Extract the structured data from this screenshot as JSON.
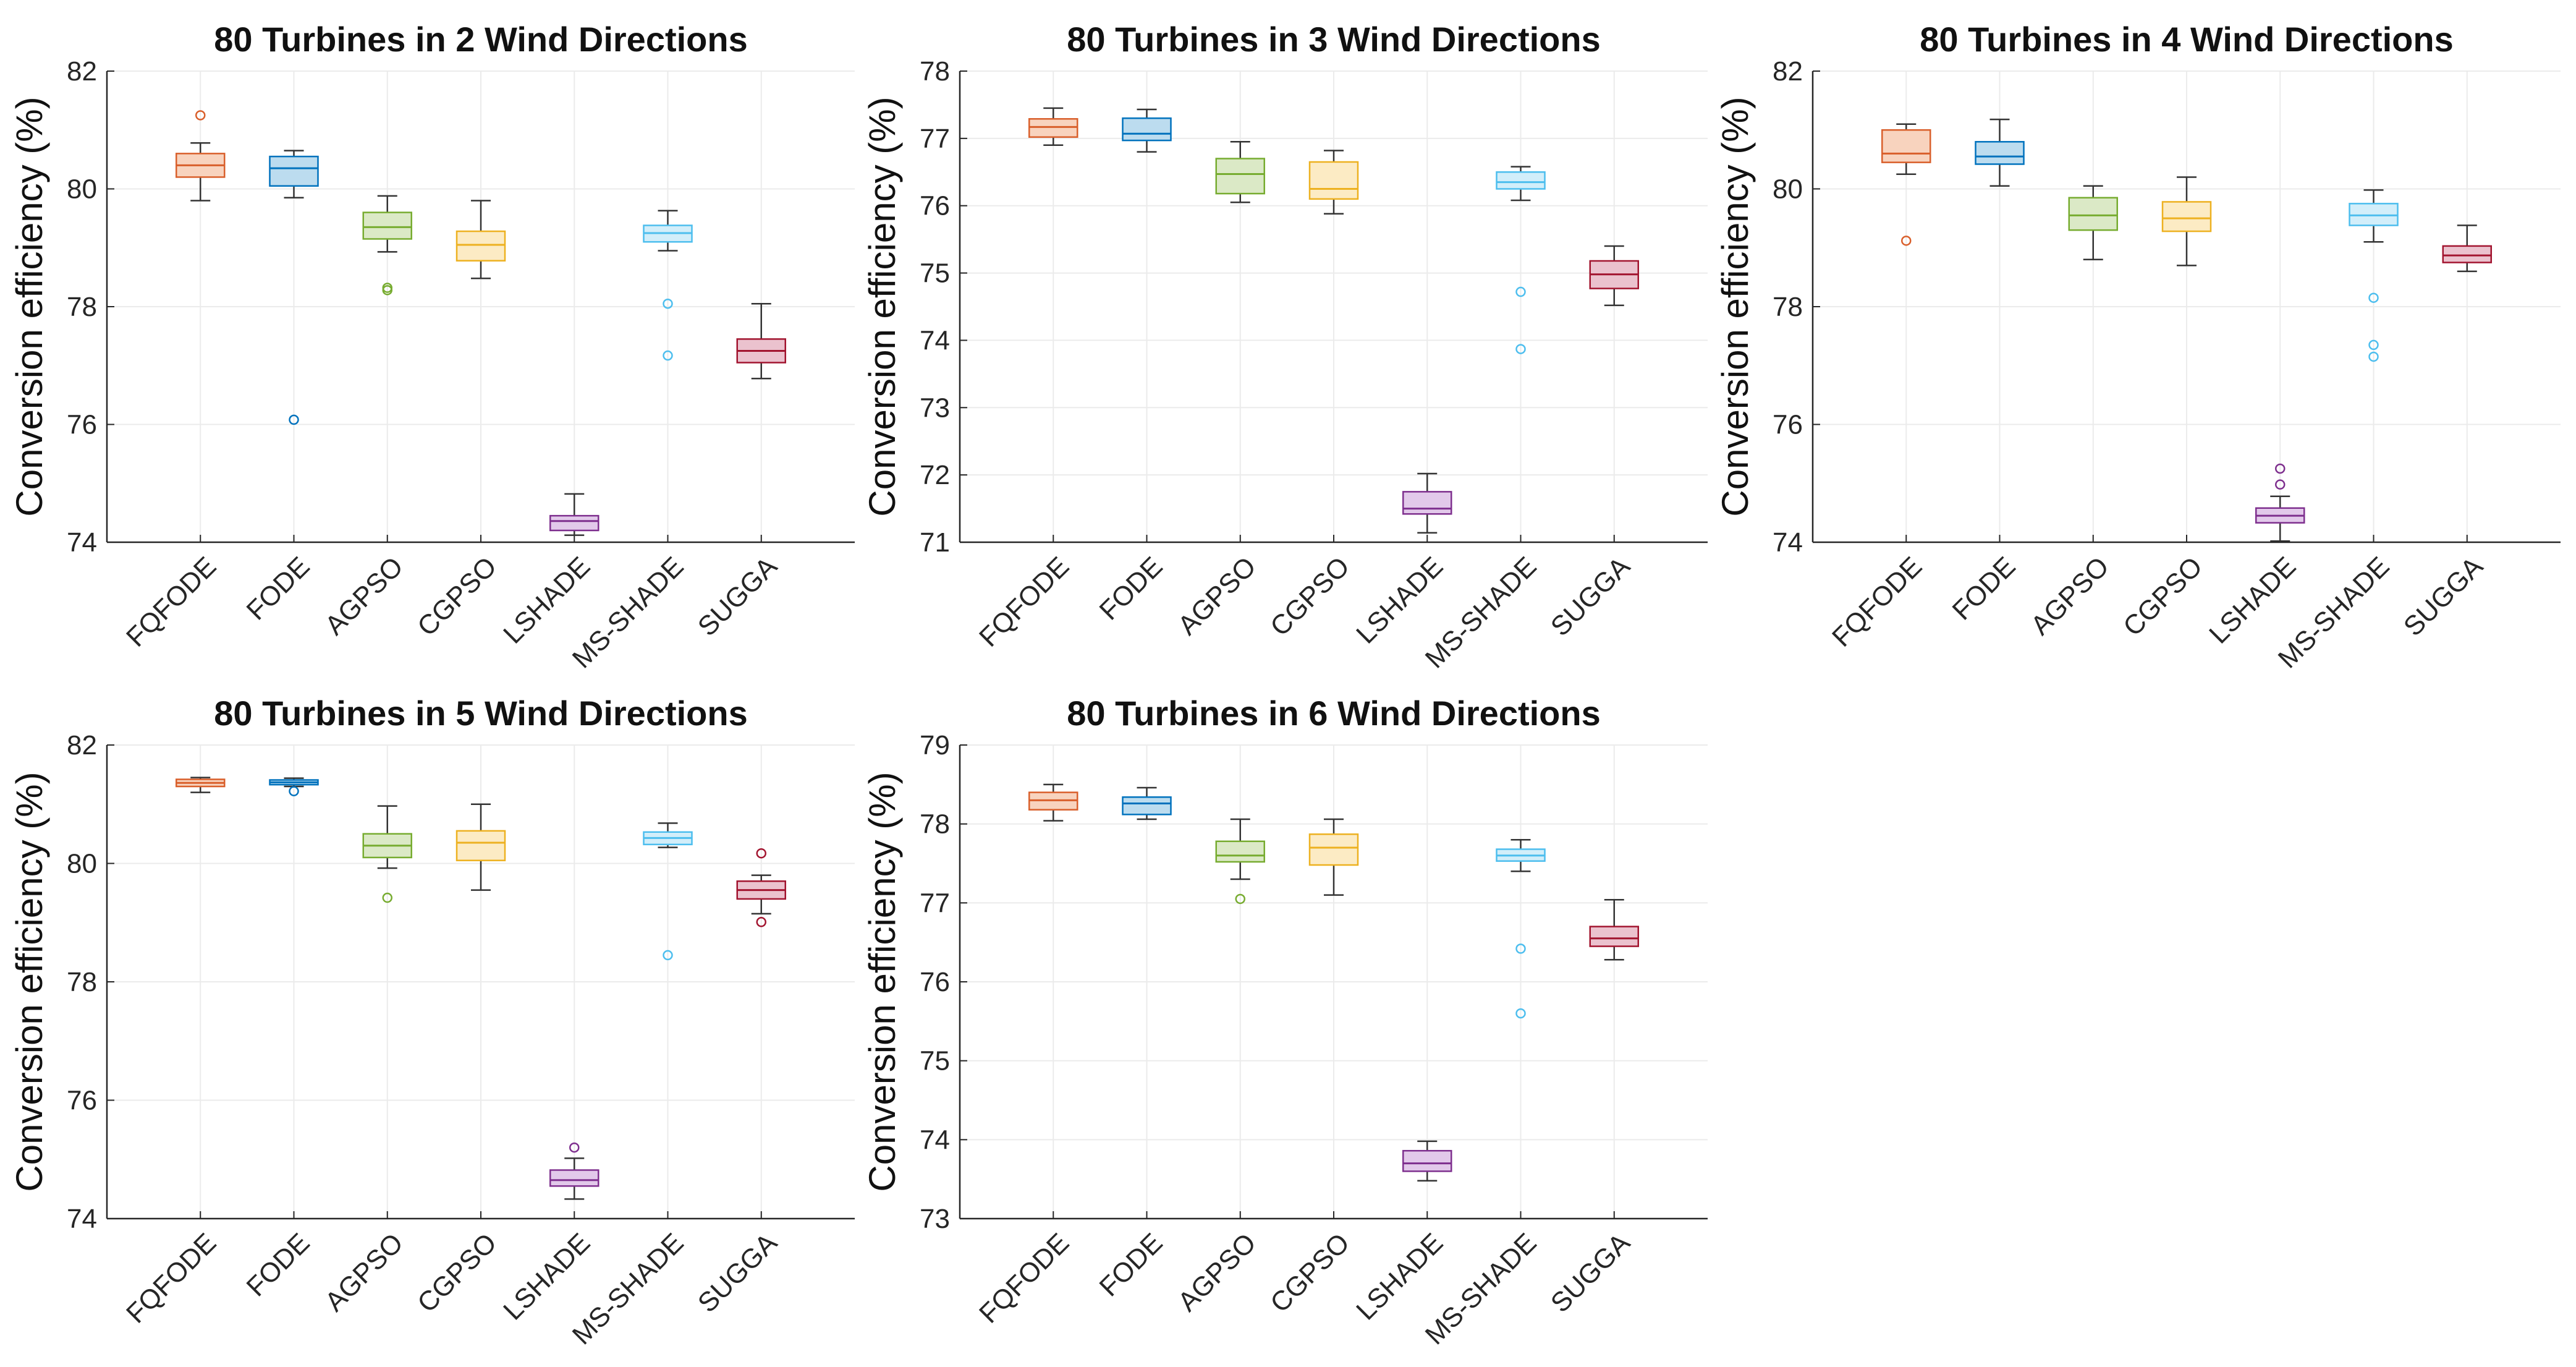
{
  "figure": {
    "ylabel": "Conversion efficiency (%)",
    "categories": [
      "FQFODE",
      "FODE",
      "AGPSO",
      "CGPSO",
      "LSHADE",
      "MS-SHADE",
      "SUGGA"
    ],
    "colors": {
      "FQFODE": {
        "edge": "#d95f2b",
        "fill": "#f8d3be"
      },
      "FODE": {
        "edge": "#0072bd",
        "fill": "#bcdcef"
      },
      "AGPSO": {
        "edge": "#77ac30",
        "fill": "#dbe9c6"
      },
      "CGPSO": {
        "edge": "#edb120",
        "fill": "#fcebc4"
      },
      "LSHADE": {
        "edge": "#7e2f8e",
        "fill": "#e2c9ea"
      },
      "MS-SHADE": {
        "edge": "#4dbeee",
        "fill": "#d2eefa"
      },
      "SUGGA": {
        "edge": "#a2142f",
        "fill": "#ebc2ce"
      }
    }
  },
  "chart_data": [
    {
      "type": "box",
      "title": "80 Turbines in 2 Wind Directions",
      "ylabel": "Conversion efficiency (%)",
      "ylim": [
        74,
        82
      ],
      "yticks": [
        74,
        76,
        78,
        80,
        82
      ],
      "grid": true,
      "boxes": [
        {
          "name": "FQFODE",
          "min": 79.8,
          "q1": 80.2,
          "median": 80.4,
          "q3": 80.6,
          "max": 80.78,
          "outliers": [
            81.25
          ]
        },
        {
          "name": "FODE",
          "min": 79.85,
          "q1": 80.05,
          "median": 80.35,
          "q3": 80.55,
          "max": 80.65,
          "outliers": [
            76.08
          ]
        },
        {
          "name": "AGPSO",
          "min": 78.93,
          "q1": 79.15,
          "median": 79.35,
          "q3": 79.6,
          "max": 79.88,
          "outliers": [
            78.28,
            78.32
          ]
        },
        {
          "name": "CGPSO",
          "min": 78.48,
          "q1": 78.78,
          "median": 79.05,
          "q3": 79.28,
          "max": 79.8,
          "outliers": []
        },
        {
          "name": "LSHADE",
          "min": 74.12,
          "q1": 74.2,
          "median": 74.36,
          "q3": 74.45,
          "max": 74.82,
          "outliers": []
        },
        {
          "name": "MS-SHADE",
          "min": 78.95,
          "q1": 79.1,
          "median": 79.25,
          "q3": 79.38,
          "max": 79.63,
          "outliers": [
            78.05,
            77.17
          ]
        },
        {
          "name": "SUGGA",
          "min": 76.78,
          "q1": 77.05,
          "median": 77.25,
          "q3": 77.45,
          "max": 78.05,
          "outliers": []
        }
      ]
    },
    {
      "type": "box",
      "title": "80 Turbines in 3 Wind Directions",
      "ylabel": "Conversion efficiency (%)",
      "ylim": [
        71,
        78
      ],
      "yticks": [
        71,
        72,
        73,
        74,
        75,
        76,
        77,
        78
      ],
      "grid": true,
      "boxes": [
        {
          "name": "FQFODE",
          "min": 76.9,
          "q1": 77.02,
          "median": 77.17,
          "q3": 77.29,
          "max": 77.45,
          "outliers": []
        },
        {
          "name": "FODE",
          "min": 76.8,
          "q1": 76.97,
          "median": 77.07,
          "q3": 77.3,
          "max": 77.43,
          "outliers": []
        },
        {
          "name": "AGPSO",
          "min": 76.05,
          "q1": 76.18,
          "median": 76.47,
          "q3": 76.7,
          "max": 76.95,
          "outliers": []
        },
        {
          "name": "CGPSO",
          "min": 75.88,
          "q1": 76.1,
          "median": 76.25,
          "q3": 76.65,
          "max": 76.82,
          "outliers": []
        },
        {
          "name": "LSHADE",
          "min": 71.14,
          "q1": 71.42,
          "median": 71.5,
          "q3": 71.75,
          "max": 72.02,
          "outliers": []
        },
        {
          "name": "MS-SHADE",
          "min": 76.08,
          "q1": 76.25,
          "median": 76.35,
          "q3": 76.5,
          "max": 76.58,
          "outliers": [
            74.72,
            73.87
          ]
        },
        {
          "name": "SUGGA",
          "min": 74.52,
          "q1": 74.77,
          "median": 74.98,
          "q3": 75.18,
          "max": 75.4,
          "outliers": []
        }
      ]
    },
    {
      "type": "box",
      "title": "80 Turbines in 4 Wind Directions",
      "ylabel": "Conversion efficiency (%)",
      "ylim": [
        74,
        82
      ],
      "yticks": [
        74,
        76,
        78,
        80,
        82
      ],
      "grid": true,
      "boxes": [
        {
          "name": "FQFODE",
          "min": 80.25,
          "q1": 80.45,
          "median": 80.6,
          "q3": 81.0,
          "max": 81.1,
          "outliers": [
            79.12
          ]
        },
        {
          "name": "FODE",
          "min": 80.05,
          "q1": 80.42,
          "median": 80.55,
          "q3": 80.8,
          "max": 81.18,
          "outliers": []
        },
        {
          "name": "AGPSO",
          "min": 78.8,
          "q1": 79.3,
          "median": 79.55,
          "q3": 79.85,
          "max": 80.05,
          "outliers": []
        },
        {
          "name": "CGPSO",
          "min": 78.7,
          "q1": 79.28,
          "median": 79.5,
          "q3": 79.78,
          "max": 80.2,
          "outliers": []
        },
        {
          "name": "LSHADE",
          "min": 74.02,
          "q1": 74.33,
          "median": 74.45,
          "q3": 74.58,
          "max": 74.78,
          "outliers": [
            75.25,
            74.98
          ]
        },
        {
          "name": "MS-SHADE",
          "min": 79.1,
          "q1": 79.38,
          "median": 79.55,
          "q3": 79.75,
          "max": 79.98,
          "outliers": [
            78.15,
            77.35,
            77.15
          ]
        },
        {
          "name": "SUGGA",
          "min": 78.6,
          "q1": 78.75,
          "median": 78.87,
          "q3": 79.03,
          "max": 79.38,
          "outliers": []
        }
      ]
    },
    {
      "type": "box",
      "title": "80 Turbines in 5 Wind Directions",
      "ylabel": "Conversion efficiency (%)",
      "ylim": [
        74,
        82
      ],
      "yticks": [
        74,
        76,
        78,
        80,
        82
      ],
      "grid": true,
      "boxes": [
        {
          "name": "FQFODE",
          "min": 81.2,
          "q1": 81.3,
          "median": 81.36,
          "q3": 81.42,
          "max": 81.45,
          "outliers": []
        },
        {
          "name": "FODE",
          "min": 81.3,
          "q1": 81.33,
          "median": 81.37,
          "q3": 81.41,
          "max": 81.44,
          "outliers": [
            81.22
          ]
        },
        {
          "name": "AGPSO",
          "min": 79.92,
          "q1": 80.1,
          "median": 80.3,
          "q3": 80.5,
          "max": 80.97,
          "outliers": [
            79.42
          ]
        },
        {
          "name": "CGPSO",
          "min": 79.55,
          "q1": 80.05,
          "median": 80.35,
          "q3": 80.55,
          "max": 81.0,
          "outliers": []
        },
        {
          "name": "LSHADE",
          "min": 74.33,
          "q1": 74.55,
          "median": 74.65,
          "q3": 74.82,
          "max": 75.02,
          "outliers": [
            75.2
          ]
        },
        {
          "name": "MS-SHADE",
          "min": 80.27,
          "q1": 80.32,
          "median": 80.43,
          "q3": 80.53,
          "max": 80.68,
          "outliers": [
            78.45
          ]
        },
        {
          "name": "SUGGA",
          "min": 79.15,
          "q1": 79.4,
          "median": 79.55,
          "q3": 79.7,
          "max": 79.8,
          "outliers": [
            80.17,
            79.01
          ]
        }
      ]
    },
    {
      "type": "box",
      "title": "80 Turbines in 6 Wind Directions",
      "ylabel": "Conversion efficiency (%)",
      "ylim": [
        73,
        79
      ],
      "yticks": [
        73,
        74,
        75,
        76,
        77,
        78,
        79
      ],
      "grid": true,
      "boxes": [
        {
          "name": "FQFODE",
          "min": 78.04,
          "q1": 78.18,
          "median": 78.3,
          "q3": 78.4,
          "max": 78.5,
          "outliers": []
        },
        {
          "name": "FODE",
          "min": 78.06,
          "q1": 78.12,
          "median": 78.26,
          "q3": 78.34,
          "max": 78.46,
          "outliers": []
        },
        {
          "name": "AGPSO",
          "min": 77.3,
          "q1": 77.52,
          "median": 77.6,
          "q3": 77.78,
          "max": 78.06,
          "outliers": [
            77.05
          ]
        },
        {
          "name": "CGPSO",
          "min": 77.1,
          "q1": 77.48,
          "median": 77.7,
          "q3": 77.87,
          "max": 78.06,
          "outliers": []
        },
        {
          "name": "LSHADE",
          "min": 73.48,
          "q1": 73.6,
          "median": 73.7,
          "q3": 73.86,
          "max": 73.98,
          "outliers": []
        },
        {
          "name": "MS-SHADE",
          "min": 77.4,
          "q1": 77.53,
          "median": 77.6,
          "q3": 77.68,
          "max": 77.8,
          "outliers": [
            76.42,
            75.6
          ]
        },
        {
          "name": "SUGGA",
          "min": 76.28,
          "q1": 76.45,
          "median": 76.55,
          "q3": 76.7,
          "max": 77.04,
          "outliers": []
        }
      ]
    }
  ]
}
